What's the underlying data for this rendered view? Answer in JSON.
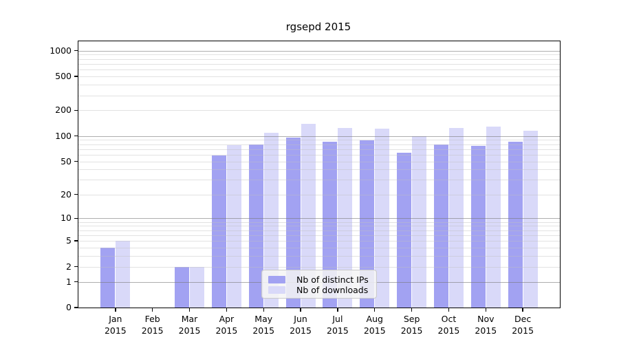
{
  "chart_data": {
    "type": "bar",
    "title": "rgsepd 2015",
    "categories": [
      "Jan 2015",
      "Feb 2015",
      "Mar 2015",
      "Apr 2015",
      "May 2015",
      "Jun 2015",
      "Jul 2015",
      "Aug 2015",
      "Sep 2015",
      "Oct 2015",
      "Nov 2015",
      "Dec 2015"
    ],
    "series": [
      {
        "name": "Nb of distinct IPs",
        "color": "#a2a2f2",
        "values": [
          4,
          0,
          2,
          59,
          79,
          95,
          86,
          89,
          63,
          80,
          77,
          86
        ]
      },
      {
        "name": "Nb of downloads",
        "color": "#d9d9f9",
        "values": [
          5,
          0,
          2,
          78,
          109,
          140,
          125,
          121,
          99,
          124,
          129,
          116
        ]
      }
    ],
    "yscale": "log1p",
    "yticks": [
      0,
      1,
      2,
      5,
      10,
      20,
      50,
      100,
      200,
      500,
      1000
    ],
    "ylim": [
      0,
      1290
    ],
    "grid": "horizontal-on, major at decades 1/10/100/1000, minor at 2-9 per decade",
    "legend_position": "inside-bottom-center",
    "xlabel": "",
    "ylabel": "",
    "colors": {
      "grid_major": "#787878",
      "grid_minor": "#bebebe",
      "spine": "#000000",
      "text": "#000000",
      "background": "#ffffff"
    }
  }
}
